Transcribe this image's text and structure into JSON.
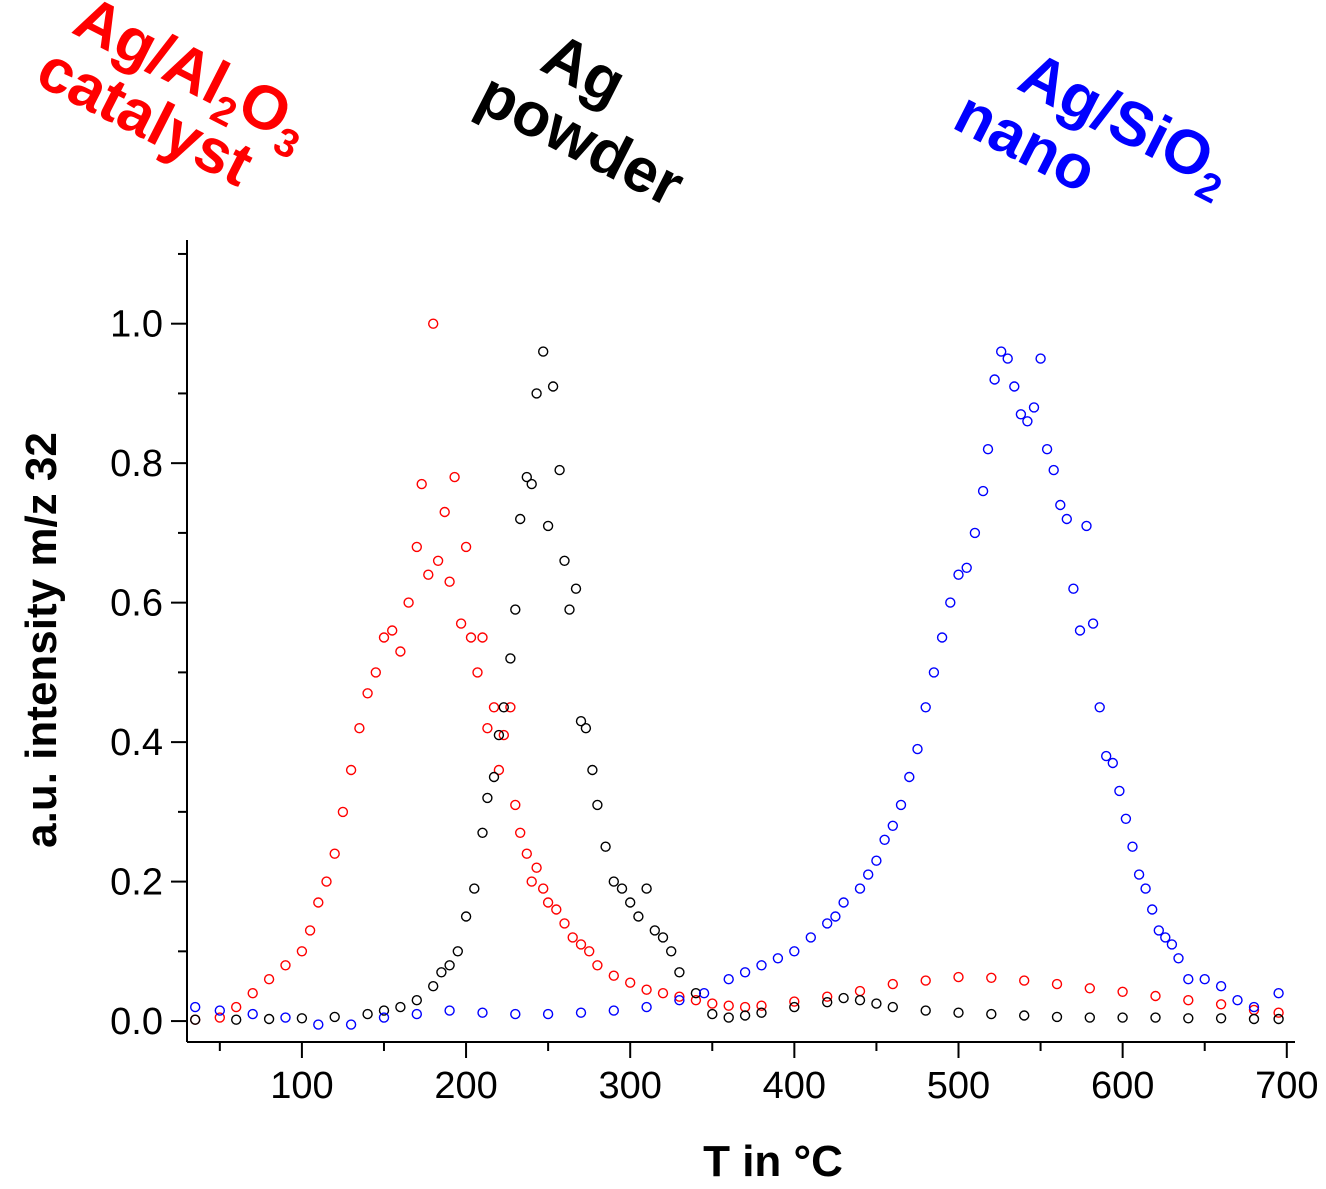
{
  "chart_data": {
    "type": "scatter",
    "title": "",
    "xlabel": "T in °C",
    "ylabel": "a.u. intensity m/z 32",
    "xlim": [
      30,
      705
    ],
    "ylim": [
      -0.03,
      1.12
    ],
    "x_ticks": [
      "100",
      "200",
      "300",
      "400",
      "500",
      "600",
      "700"
    ],
    "y_ticks": [
      "0.0",
      "0.2",
      "0.4",
      "0.6",
      "0.8",
      "1.0"
    ],
    "grid": false,
    "marker": "open-circle",
    "series": [
      {
        "label_main": "Ag/Al",
        "label_sub1": "2",
        "label_mid": "O",
        "label_sub2": "3",
        "label_line2": "catalyst",
        "color": "#ff0000",
        "x": [
          35,
          50,
          60,
          70,
          80,
          90,
          100,
          105,
          110,
          115,
          120,
          125,
          130,
          135,
          140,
          145,
          150,
          155,
          160,
          165,
          170,
          173,
          177,
          180,
          183,
          187,
          190,
          193,
          197,
          200,
          203,
          207,
          210,
          213,
          217,
          220,
          223,
          227,
          230,
          233,
          237,
          240,
          243,
          247,
          250,
          255,
          260,
          265,
          270,
          275,
          280,
          290,
          300,
          310,
          320,
          330,
          340,
          350,
          360,
          370,
          380,
          400,
          420,
          440,
          460,
          480,
          500,
          520,
          540,
          560,
          580,
          600,
          620,
          640,
          660,
          680,
          695
        ],
        "y": [
          0.002,
          0.005,
          0.02,
          0.04,
          0.06,
          0.08,
          0.1,
          0.13,
          0.17,
          0.2,
          0.24,
          0.3,
          0.36,
          0.42,
          0.47,
          0.5,
          0.55,
          0.56,
          0.53,
          0.6,
          0.68,
          0.77,
          0.64,
          1.0,
          0.66,
          0.73,
          0.63,
          0.78,
          0.57,
          0.68,
          0.55,
          0.5,
          0.55,
          0.42,
          0.45,
          0.36,
          0.41,
          0.45,
          0.31,
          0.27,
          0.24,
          0.2,
          0.22,
          0.19,
          0.17,
          0.16,
          0.14,
          0.12,
          0.11,
          0.1,
          0.08,
          0.065,
          0.055,
          0.045,
          0.04,
          0.035,
          0.03,
          0.025,
          0.022,
          0.02,
          0.022,
          0.028,
          0.035,
          0.043,
          0.053,
          0.058,
          0.063,
          0.062,
          0.058,
          0.053,
          0.047,
          0.042,
          0.036,
          0.03,
          0.024,
          0.016,
          0.012
        ]
      },
      {
        "label_main": "Ag",
        "label_line2": "powder",
        "color": "#000000",
        "x": [
          35,
          60,
          80,
          100,
          120,
          140,
          150,
          160,
          170,
          180,
          185,
          190,
          195,
          200,
          205,
          210,
          213,
          217,
          220,
          223,
          227,
          230,
          233,
          237,
          240,
          243,
          247,
          250,
          253,
          257,
          260,
          263,
          267,
          270,
          273,
          277,
          280,
          285,
          290,
          295,
          300,
          305,
          310,
          315,
          320,
          325,
          330,
          340,
          350,
          360,
          370,
          380,
          400,
          420,
          430,
          440,
          450,
          460,
          480,
          500,
          520,
          540,
          560,
          580,
          600,
          620,
          640,
          660,
          680,
          695
        ],
        "y": [
          0.002,
          0.002,
          0.003,
          0.004,
          0.006,
          0.01,
          0.015,
          0.02,
          0.03,
          0.05,
          0.07,
          0.08,
          0.1,
          0.15,
          0.19,
          0.27,
          0.32,
          0.35,
          0.41,
          0.45,
          0.52,
          0.59,
          0.72,
          0.78,
          0.77,
          0.9,
          0.96,
          0.71,
          0.91,
          0.79,
          0.66,
          0.59,
          0.62,
          0.43,
          0.42,
          0.36,
          0.31,
          0.25,
          0.2,
          0.19,
          0.17,
          0.15,
          0.19,
          0.13,
          0.12,
          0.1,
          0.07,
          0.04,
          0.01,
          0.005,
          0.008,
          0.012,
          0.02,
          0.027,
          0.033,
          0.03,
          0.025,
          0.02,
          0.015,
          0.012,
          0.01,
          0.008,
          0.006,
          0.005,
          0.005,
          0.005,
          0.004,
          0.004,
          0.003,
          0.003
        ]
      },
      {
        "label_main": "Ag/SiO",
        "label_sub1": "2",
        "label_line2": "nano",
        "color": "#0000ff",
        "x": [
          35,
          50,
          70,
          90,
          110,
          130,
          150,
          170,
          190,
          210,
          230,
          250,
          270,
          290,
          310,
          330,
          345,
          360,
          370,
          380,
          390,
          400,
          410,
          420,
          425,
          430,
          440,
          445,
          450,
          455,
          460,
          465,
          470,
          475,
          480,
          485,
          490,
          495,
          500,
          505,
          510,
          515,
          518,
          522,
          526,
          530,
          534,
          538,
          542,
          546,
          550,
          554,
          558,
          562,
          566,
          570,
          574,
          578,
          582,
          586,
          590,
          594,
          598,
          602,
          606,
          610,
          614,
          618,
          622,
          626,
          630,
          634,
          640,
          650,
          660,
          670,
          680,
          695
        ],
        "y": [
          0.02,
          0.015,
          0.01,
          0.005,
          -0.005,
          -0.005,
          0.005,
          0.01,
          0.015,
          0.012,
          0.01,
          0.01,
          0.012,
          0.015,
          0.02,
          0.03,
          0.04,
          0.06,
          0.07,
          0.08,
          0.09,
          0.1,
          0.12,
          0.14,
          0.15,
          0.17,
          0.19,
          0.21,
          0.23,
          0.26,
          0.28,
          0.31,
          0.35,
          0.39,
          0.45,
          0.5,
          0.55,
          0.6,
          0.64,
          0.65,
          0.7,
          0.76,
          0.82,
          0.92,
          0.96,
          0.95,
          0.91,
          0.87,
          0.86,
          0.88,
          0.95,
          0.82,
          0.79,
          0.74,
          0.72,
          0.62,
          0.56,
          0.71,
          0.57,
          0.45,
          0.38,
          0.37,
          0.33,
          0.29,
          0.25,
          0.21,
          0.19,
          0.16,
          0.13,
          0.12,
          0.11,
          0.09,
          0.06,
          0.06,
          0.05,
          0.03,
          0.02,
          0.04
        ]
      }
    ]
  }
}
